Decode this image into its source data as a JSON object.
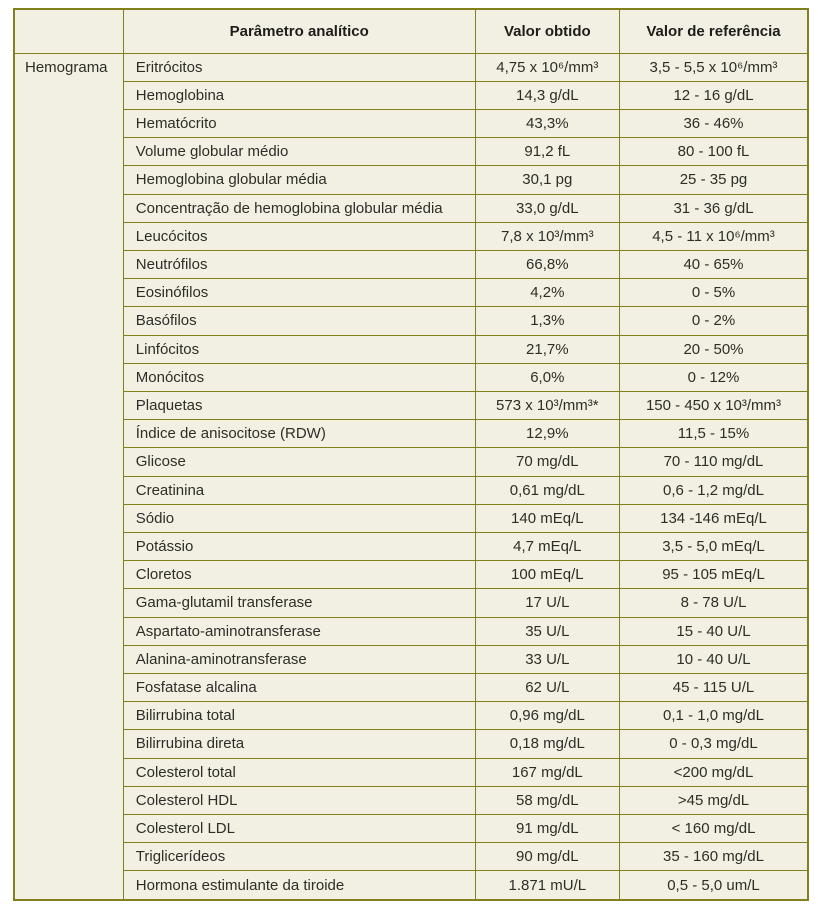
{
  "colors": {
    "table_border": "#81801c",
    "table_background": "#f2f0e2",
    "body_text": "#2e2d28",
    "header_text": "#1e1d1a",
    "page_background": "#ffffff"
  },
  "chart_data": {
    "type": "table",
    "group_label": "Hemograma",
    "columns": [
      "Parâmetro analítico",
      "Valor obtido",
      "Valor de referência"
    ],
    "rows": [
      [
        "Eritrócitos",
        "4,75 x 10⁶/mm³",
        "3,5 - 5,5 x 10⁶/mm³"
      ],
      [
        "Hemoglobina",
        "14,3 g/dL",
        "12 - 16 g/dL"
      ],
      [
        "Hematócrito",
        "43,3%",
        "36 - 46%"
      ],
      [
        "Volume globular médio",
        "91,2 fL",
        "80 - 100 fL"
      ],
      [
        "Hemoglobina globular média",
        "30,1 pg",
        "25 - 35 pg"
      ],
      [
        "Concentração de hemoglobina globular média",
        "33,0 g/dL",
        "31 - 36 g/dL"
      ],
      [
        "Leucócitos",
        "7,8 x 10³/mm³",
        "4,5 - 11 x 10⁶/mm³"
      ],
      [
        "Neutrófilos",
        "66,8%",
        "40 - 65%"
      ],
      [
        "Eosinófilos",
        "4,2%",
        "0 - 5%"
      ],
      [
        "Basófilos",
        "1,3%",
        "0 - 2%"
      ],
      [
        "Linfócitos",
        "21,7%",
        "20 - 50%"
      ],
      [
        "Monócitos",
        "6,0%",
        "0 - 12%"
      ],
      [
        "Plaquetas",
        "573 x 10³/mm³*",
        "150 - 450 x 10³/mm³"
      ],
      [
        "Índice de anisocitose (RDW)",
        "12,9%",
        "11,5 - 15%"
      ],
      [
        "Glicose",
        "70 mg/dL",
        "70 - 110 mg/dL"
      ],
      [
        "Creatinina",
        "0,61 mg/dL",
        "0,6 - 1,2 mg/dL"
      ],
      [
        "Sódio",
        "140 mEq/L",
        "134 -146 mEq/L"
      ],
      [
        "Potássio",
        "4,7 mEq/L",
        "3,5 - 5,0 mEq/L"
      ],
      [
        "Cloretos",
        "100 mEq/L",
        "95 - 105 mEq/L"
      ],
      [
        "Gama-glutamil transferase",
        "17 U/L",
        "8 - 78 U/L"
      ],
      [
        "Aspartato-aminotransferase",
        "35 U/L",
        "15 - 40 U/L"
      ],
      [
        "Alanina-aminotransferase",
        "33 U/L",
        "10 - 40 U/L"
      ],
      [
        "Fosfatase alcalina",
        "62 U/L",
        "45 - 115 U/L"
      ],
      [
        "Bilirrubina total",
        "0,96 mg/dL",
        "0,1 - 1,0 mg/dL"
      ],
      [
        "Bilirrubina direta",
        "0,18 mg/dL",
        "0 - 0,3 mg/dL"
      ],
      [
        "Colesterol total",
        "167 mg/dL",
        "<200 mg/dL"
      ],
      [
        "Colesterol HDL",
        "58 mg/dL",
        ">45 mg/dL"
      ],
      [
        "Colesterol LDL",
        "91 mg/dL",
        "< 160 mg/dL"
      ],
      [
        "Triglicerídeos",
        "90 mg/dL",
        "35 - 160 mg/dL"
      ],
      [
        "Hormona estimulante da tiroide",
        "1.871 mU/L",
        "0,5 - 5,0 um/L"
      ]
    ]
  }
}
